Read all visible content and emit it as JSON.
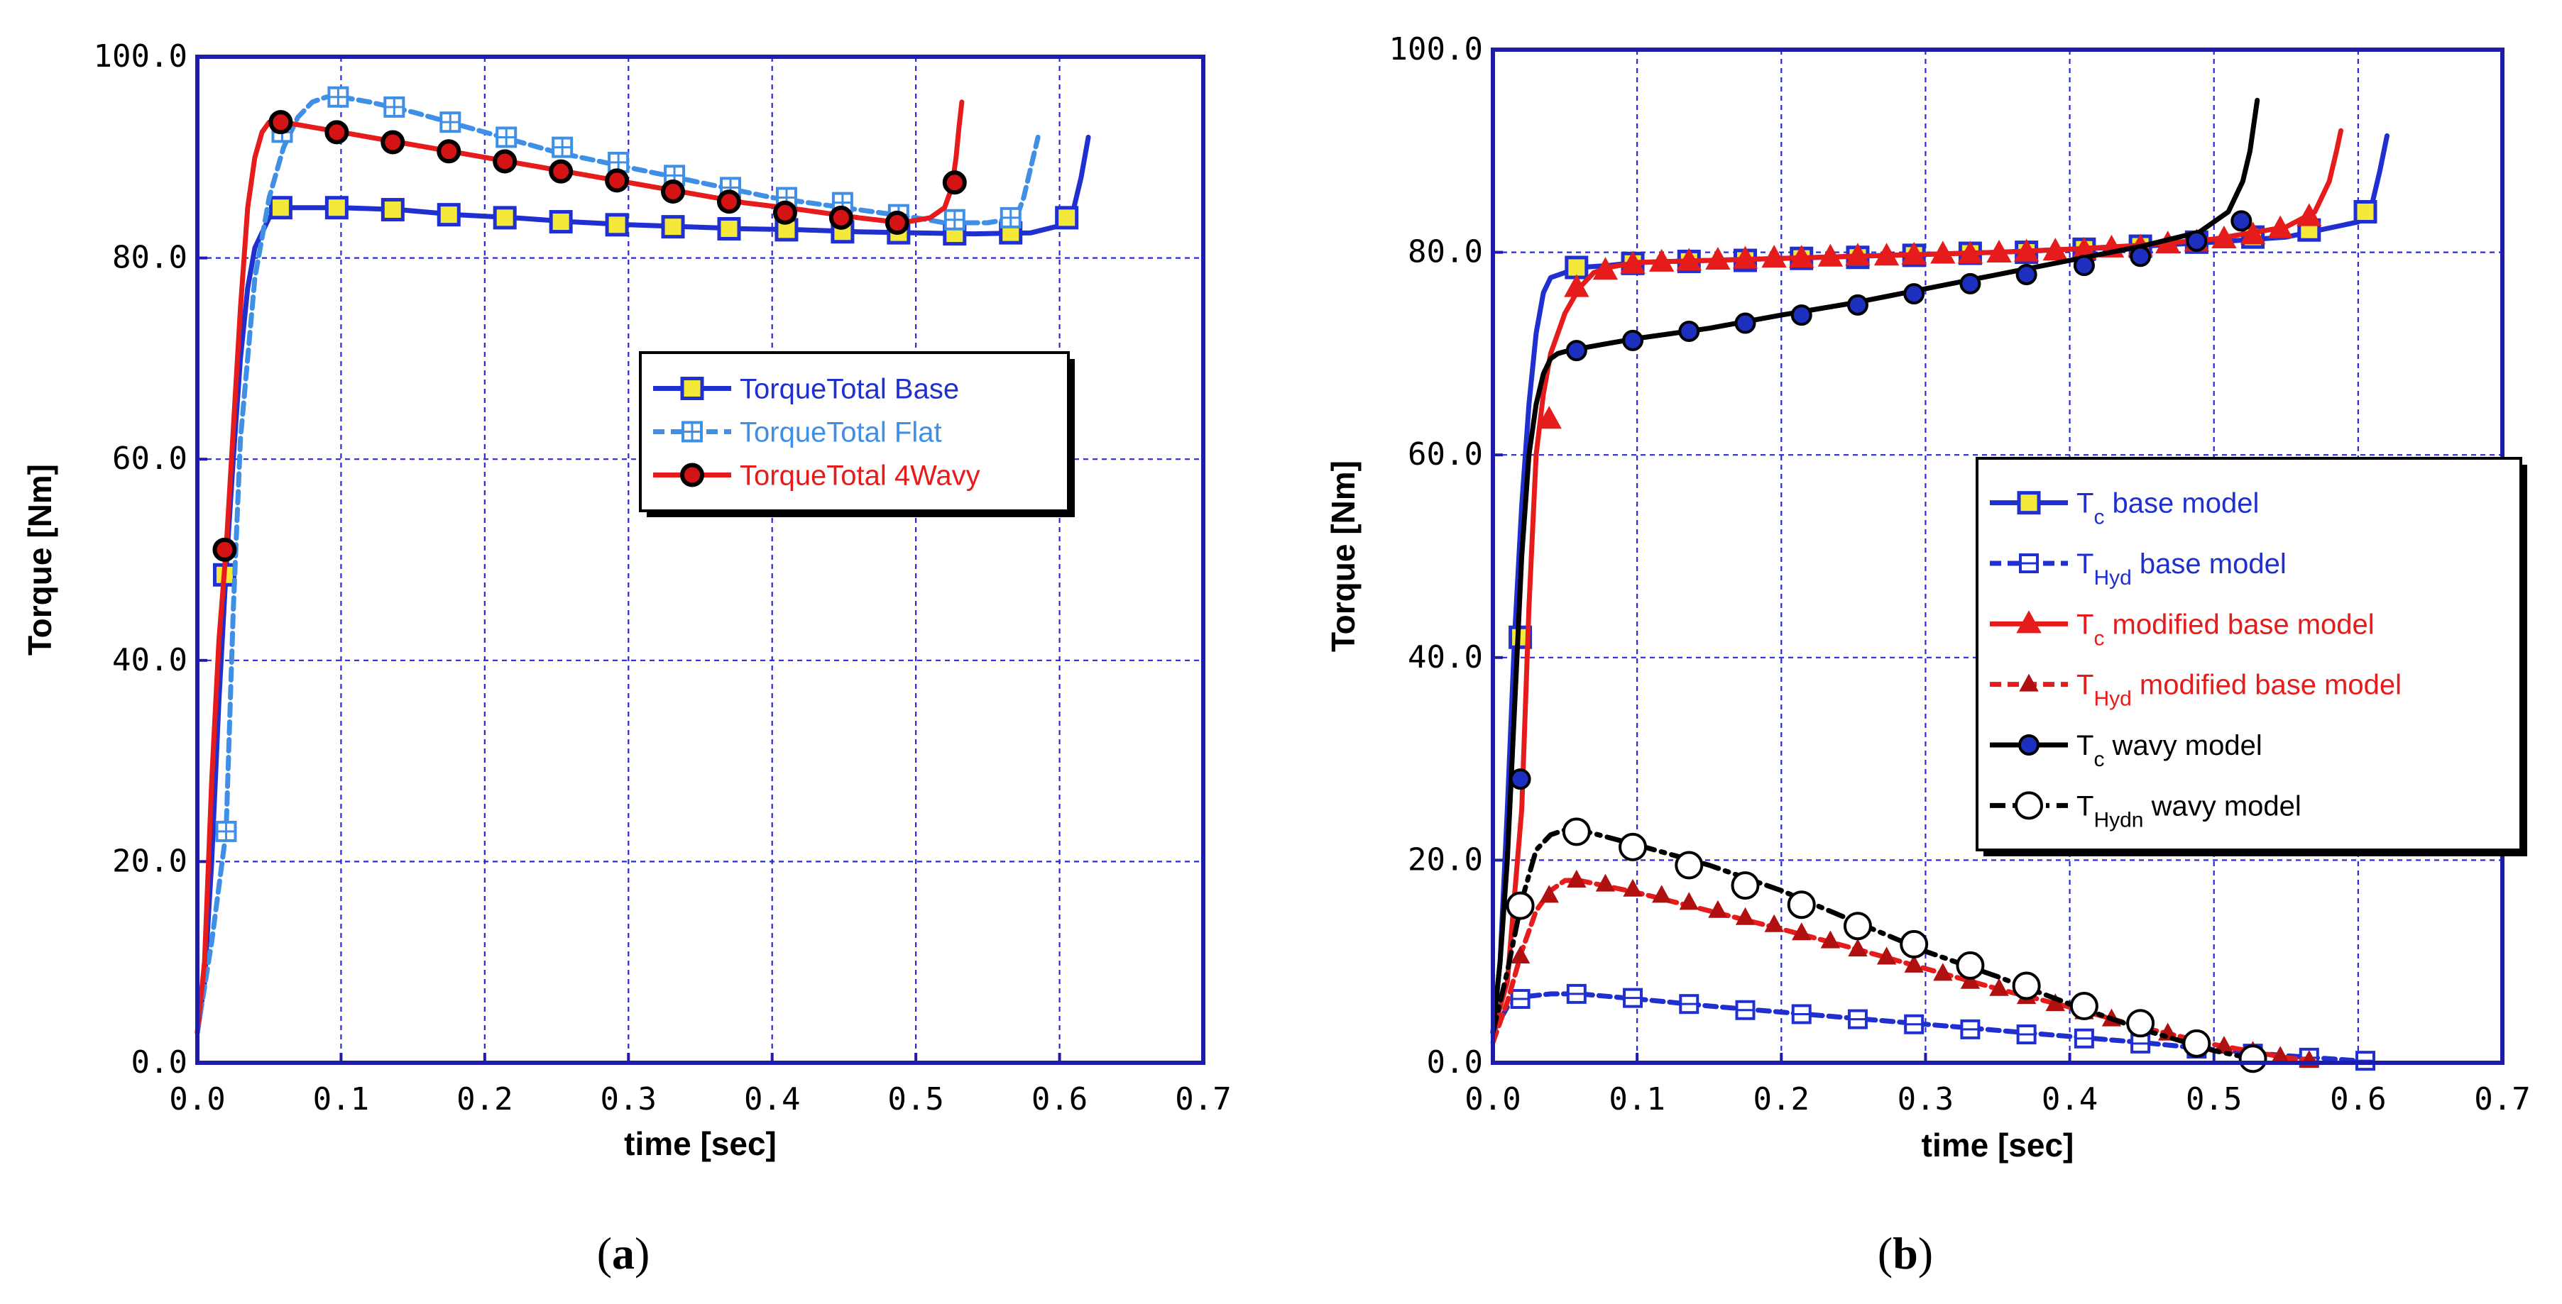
{
  "chart_data": [
    {
      "type": "line",
      "caption": "a",
      "xlabel": "time [sec]",
      "ylabel": "Torque [Nm]",
      "xlim": [
        0,
        0.7
      ],
      "ylim": [
        0,
        100
      ],
      "xticks": [
        "0.0",
        "0.1",
        "0.2",
        "0.3",
        "0.4",
        "0.5",
        "0.6",
        "0.7"
      ],
      "yticks": [
        "0.0",
        "20.0",
        "40.0",
        "60.0",
        "80.0",
        "100.0"
      ],
      "grid": true,
      "legend_position": "center-right",
      "series": [
        {
          "name": "TorqueTotal Base",
          "color": "#1f2fd0",
          "dash": "solid",
          "marker": "square-yellow",
          "x": [
            0,
            0.005,
            0.01,
            0.015,
            0.02,
            0.025,
            0.03,
            0.035,
            0.04,
            0.05,
            0.06,
            0.08,
            0.1,
            0.14,
            0.18,
            0.22,
            0.26,
            0.3,
            0.34,
            0.38,
            0.42,
            0.46,
            0.5,
            0.54,
            0.58,
            0.6,
            0.61,
            0.615,
            0.62
          ],
          "y": [
            3,
            8,
            20,
            36,
            49,
            60,
            70,
            77,
            81,
            84,
            85,
            85,
            85,
            84.8,
            84.3,
            84,
            83.6,
            83.3,
            83.1,
            82.9,
            82.8,
            82.6,
            82.5,
            82.4,
            82.5,
            83.2,
            85,
            88,
            92
          ],
          "marker_x": [
            0.019,
            0.058,
            0.097,
            0.136,
            0.175,
            0.214,
            0.253,
            0.292,
            0.331,
            0.37,
            0.41,
            0.449,
            0.488,
            0.527,
            0.566,
            0.605
          ],
          "marker_y": [
            48.5,
            85,
            85,
            84.8,
            84.3,
            84,
            83.6,
            83.3,
            83.1,
            82.9,
            82.8,
            82.6,
            82.5,
            82.4,
            82.5,
            84
          ]
        },
        {
          "name": "TorqueTotal Flat",
          "color": "#3f8fe6",
          "dash": "dashed",
          "marker": "square-hash",
          "x": [
            0,
            0.01,
            0.02,
            0.025,
            0.03,
            0.04,
            0.05,
            0.06,
            0.07,
            0.08,
            0.09,
            0.1,
            0.12,
            0.15,
            0.2,
            0.25,
            0.3,
            0.35,
            0.4,
            0.45,
            0.5,
            0.52,
            0.55,
            0.57,
            0.575,
            0.58,
            0.585
          ],
          "y": [
            3,
            12,
            23,
            45,
            62,
            78,
            86,
            91,
            94,
            95.5,
            96,
            96,
            95.5,
            94.5,
            92.5,
            90.5,
            89,
            87.5,
            86,
            85,
            84,
            83.5,
            83.5,
            84,
            86,
            89,
            92
          ],
          "marker_x": [
            0.02,
            0.059,
            0.098,
            0.137,
            0.176,
            0.215,
            0.254,
            0.293,
            0.332,
            0.371,
            0.41,
            0.449,
            0.488,
            0.527,
            0.566
          ],
          "marker_y": [
            23,
            92.5,
            96,
            95,
            93.5,
            92,
            91,
            89.5,
            88.2,
            87,
            86,
            85.5,
            84.3,
            83.8,
            84
          ]
        },
        {
          "name": "TorqueTotal 4Wavy",
          "color": "#e61b1b",
          "dash": "solid",
          "marker": "circle-black",
          "x": [
            0,
            0.005,
            0.01,
            0.015,
            0.02,
            0.025,
            0.03,
            0.035,
            0.04,
            0.045,
            0.05,
            0.06,
            0.08,
            0.1,
            0.14,
            0.18,
            0.22,
            0.26,
            0.3,
            0.34,
            0.38,
            0.42,
            0.46,
            0.49,
            0.51,
            0.52,
            0.525,
            0.528,
            0.53,
            0.532
          ],
          "y": [
            3,
            10,
            28,
            42,
            51,
            63,
            75,
            85,
            90,
            92.5,
            93.5,
            93.5,
            93,
            92.5,
            91.5,
            90.5,
            89.5,
            88.5,
            87.5,
            86.5,
            85.5,
            84.8,
            84,
            83.5,
            84,
            85,
            87,
            90,
            93,
            95.5
          ],
          "marker_x": [
            0.019,
            0.058,
            0.097,
            0.136,
            0.175,
            0.214,
            0.253,
            0.292,
            0.331,
            0.37,
            0.409,
            0.448,
            0.487,
            0.527
          ],
          "marker_y": [
            51,
            93.5,
            92.5,
            91.5,
            90.6,
            89.6,
            88.6,
            87.7,
            86.6,
            85.6,
            84.5,
            84,
            83.5,
            87.5
          ]
        }
      ]
    },
    {
      "type": "line",
      "caption": "b",
      "xlabel": "time [sec]",
      "ylabel": "Torque [Nm]",
      "xlim": [
        0,
        0.7
      ],
      "ylim": [
        0,
        100
      ],
      "xticks": [
        "0.0",
        "0.1",
        "0.2",
        "0.3",
        "0.4",
        "0.5",
        "0.6",
        "0.7"
      ],
      "yticks": [
        "0.0",
        "20.0",
        "40.0",
        "60.0",
        "80.0",
        "100.0"
      ],
      "grid": true,
      "legend_position": "center-right",
      "series": [
        {
          "name": "T_c base model",
          "legend": {
            "main": "T",
            "sub": "c",
            "rest": " base model"
          },
          "color": "#1f2fd0",
          "dash": "solid",
          "marker": "square-yellow",
          "x": [
            0,
            0.005,
            0.01,
            0.015,
            0.02,
            0.025,
            0.03,
            0.035,
            0.04,
            0.05,
            0.06,
            0.08,
            0.1,
            0.15,
            0.2,
            0.25,
            0.3,
            0.35,
            0.4,
            0.45,
            0.5,
            0.55,
            0.6,
            0.61,
            0.615,
            0.62
          ],
          "y": [
            3,
            10,
            25,
            42,
            55,
            65,
            72,
            76,
            77.5,
            78,
            78.5,
            78.7,
            79,
            79.2,
            79.4,
            79.6,
            79.8,
            80,
            80.3,
            80.6,
            81,
            81.5,
            83,
            85,
            88,
            91.5
          ],
          "marker_x": [
            0.019,
            0.058,
            0.097,
            0.136,
            0.175,
            0.214,
            0.253,
            0.292,
            0.331,
            0.37,
            0.41,
            0.449,
            0.488,
            0.527,
            0.566,
            0.605
          ],
          "marker_y": [
            42,
            78.5,
            78.9,
            79.1,
            79.2,
            79.4,
            79.5,
            79.7,
            79.9,
            80,
            80.3,
            80.6,
            81,
            81.5,
            82.2,
            84
          ]
        },
        {
          "name": "T_Hyd base model",
          "legend": {
            "main": "T",
            "sub": "Hyd",
            "rest": " base model"
          },
          "color": "#1f2fd0",
          "dash": "dashed",
          "marker": "square-open",
          "x": [
            0,
            0.01,
            0.02,
            0.04,
            0.06,
            0.1,
            0.15,
            0.2,
            0.25,
            0.3,
            0.35,
            0.4,
            0.45,
            0.5,
            0.55,
            0.6,
            0.61
          ],
          "y": [
            3,
            5.5,
            6.5,
            6.8,
            6.8,
            6.3,
            5.6,
            5,
            4.4,
            3.8,
            3.2,
            2.6,
            2,
            1.3,
            0.7,
            0.2,
            0.1
          ],
          "marker_x": [
            0.019,
            0.058,
            0.097,
            0.136,
            0.175,
            0.214,
            0.253,
            0.292,
            0.331,
            0.37,
            0.41,
            0.449,
            0.488,
            0.527,
            0.566,
            0.605
          ],
          "marker_y": [
            6.3,
            6.8,
            6.4,
            5.8,
            5.2,
            4.8,
            4.3,
            3.8,
            3.3,
            2.8,
            2.4,
            1.9,
            1.4,
            0.9,
            0.5,
            0.2
          ]
        },
        {
          "name": "T_c modified base model",
          "legend": {
            "main": "T",
            "sub": "c",
            "rest": " modified base model"
          },
          "color": "#e61b1b",
          "dash": "solid",
          "marker": "triangle",
          "x": [
            0,
            0.01,
            0.02,
            0.025,
            0.03,
            0.035,
            0.04,
            0.05,
            0.06,
            0.07,
            0.08,
            0.1,
            0.15,
            0.2,
            0.25,
            0.3,
            0.35,
            0.4,
            0.45,
            0.5,
            0.55,
            0.57,
            0.58,
            0.585,
            0.588
          ],
          "y": [
            3,
            8,
            25,
            45,
            60,
            66,
            70,
            74,
            76.5,
            78,
            78.5,
            79,
            79.2,
            79.4,
            79.6,
            79.8,
            80,
            80.3,
            80.7,
            81.3,
            82.5,
            84,
            87,
            90,
            92
          ],
          "marker_x": [
            0.039,
            0.058,
            0.078,
            0.097,
            0.117,
            0.136,
            0.156,
            0.175,
            0.195,
            0.214,
            0.234,
            0.253,
            0.273,
            0.292,
            0.312,
            0.331,
            0.351,
            0.37,
            0.39,
            0.41,
            0.429,
            0.449,
            0.468,
            0.488,
            0.507,
            0.527,
            0.546,
            0.566
          ],
          "marker_y": [
            63.5,
            76.5,
            78.2,
            78.8,
            79,
            79.1,
            79.2,
            79.3,
            79.4,
            79.4,
            79.5,
            79.6,
            79.6,
            79.7,
            79.8,
            79.8,
            79.9,
            80,
            80.1,
            80.2,
            80.4,
            80.5,
            80.8,
            81,
            81.3,
            81.7,
            82.3,
            83.5
          ]
        },
        {
          "name": "T_Hyd modified base model",
          "legend": {
            "main": "T",
            "sub": "Hyd",
            "rest": " modified base model"
          },
          "color": "#e61b1b",
          "dash": "dashed",
          "marker": "triangle-small",
          "x": [
            0,
            0.01,
            0.02,
            0.03,
            0.04,
            0.05,
            0.06,
            0.1,
            0.15,
            0.2,
            0.25,
            0.3,
            0.35,
            0.4,
            0.45,
            0.5,
            0.55,
            0.57
          ],
          "y": [
            2,
            6,
            11,
            15,
            17,
            18,
            18,
            16.8,
            15,
            13.2,
            11.3,
            9.3,
            7.3,
            5.5,
            3.5,
            1.8,
            0.5,
            0.2
          ],
          "marker_x": [
            0.019,
            0.039,
            0.058,
            0.078,
            0.097,
            0.117,
            0.136,
            0.156,
            0.175,
            0.195,
            0.214,
            0.234,
            0.253,
            0.273,
            0.292,
            0.312,
            0.331,
            0.351,
            0.37,
            0.39,
            0.41,
            0.429,
            0.449,
            0.468,
            0.488,
            0.507,
            0.527,
            0.546,
            0.566
          ],
          "marker_y": [
            10.5,
            16.5,
            18,
            17.6,
            17.1,
            16.5,
            15.8,
            15,
            14.3,
            13.6,
            12.8,
            12,
            11.2,
            10.4,
            9.6,
            8.8,
            8,
            7.3,
            6.5,
            5.8,
            5,
            4.3,
            3.6,
            2.9,
            2.2,
            1.6,
            1.1,
            0.6,
            0.2
          ]
        },
        {
          "name": "T_c wavy model",
          "legend": {
            "main": "T",
            "sub": "c",
            "rest": " wavy model"
          },
          "color": "#000000",
          "dash": "solid",
          "marker": "circle-blue",
          "x": [
            0,
            0.005,
            0.01,
            0.015,
            0.02,
            0.025,
            0.03,
            0.035,
            0.04,
            0.045,
            0.05,
            0.06,
            0.08,
            0.1,
            0.15,
            0.2,
            0.25,
            0.3,
            0.35,
            0.4,
            0.45,
            0.49,
            0.51,
            0.52,
            0.525,
            0.528,
            0.53
          ],
          "y": [
            3,
            10,
            20,
            35,
            50,
            60,
            65,
            68,
            69.5,
            70,
            70.2,
            70.5,
            71,
            71.5,
            72.5,
            73.8,
            75,
            76.4,
            77.8,
            79.2,
            80.6,
            82,
            84,
            87,
            90,
            93,
            95
          ],
          "marker_x": [
            0.019,
            0.058,
            0.097,
            0.136,
            0.175,
            0.214,
            0.253,
            0.292,
            0.331,
            0.37,
            0.41,
            0.449,
            0.488,
            0.519
          ],
          "marker_y": [
            28,
            70.3,
            71.3,
            72.2,
            73,
            73.8,
            74.8,
            75.9,
            76.9,
            77.8,
            78.7,
            79.6,
            81.1,
            83.1
          ]
        },
        {
          "name": "T_Hydn wavy model",
          "legend": {
            "main": "T",
            "sub": "Hydn",
            "rest": " wavy model"
          },
          "color": "#000000",
          "dash": "dashdot",
          "marker": "circle-open",
          "x": [
            0,
            0.01,
            0.02,
            0.03,
            0.04,
            0.05,
            0.06,
            0.1,
            0.15,
            0.2,
            0.25,
            0.3,
            0.35,
            0.4,
            0.45,
            0.5,
            0.53
          ],
          "y": [
            3,
            9,
            16,
            21,
            22.5,
            23,
            23,
            21.5,
            19.5,
            17,
            14,
            11,
            8.5,
            5.8,
            3.3,
            1.2,
            0.3
          ],
          "marker_x": [
            0.019,
            0.058,
            0.097,
            0.136,
            0.175,
            0.214,
            0.253,
            0.292,
            0.331,
            0.37,
            0.41,
            0.449,
            0.488,
            0.527
          ],
          "marker_y": [
            15.5,
            22.8,
            21.3,
            19.5,
            17.5,
            15.6,
            13.5,
            11.7,
            9.6,
            7.6,
            5.6,
            3.9,
            1.9,
            0.4
          ]
        }
      ]
    }
  ]
}
